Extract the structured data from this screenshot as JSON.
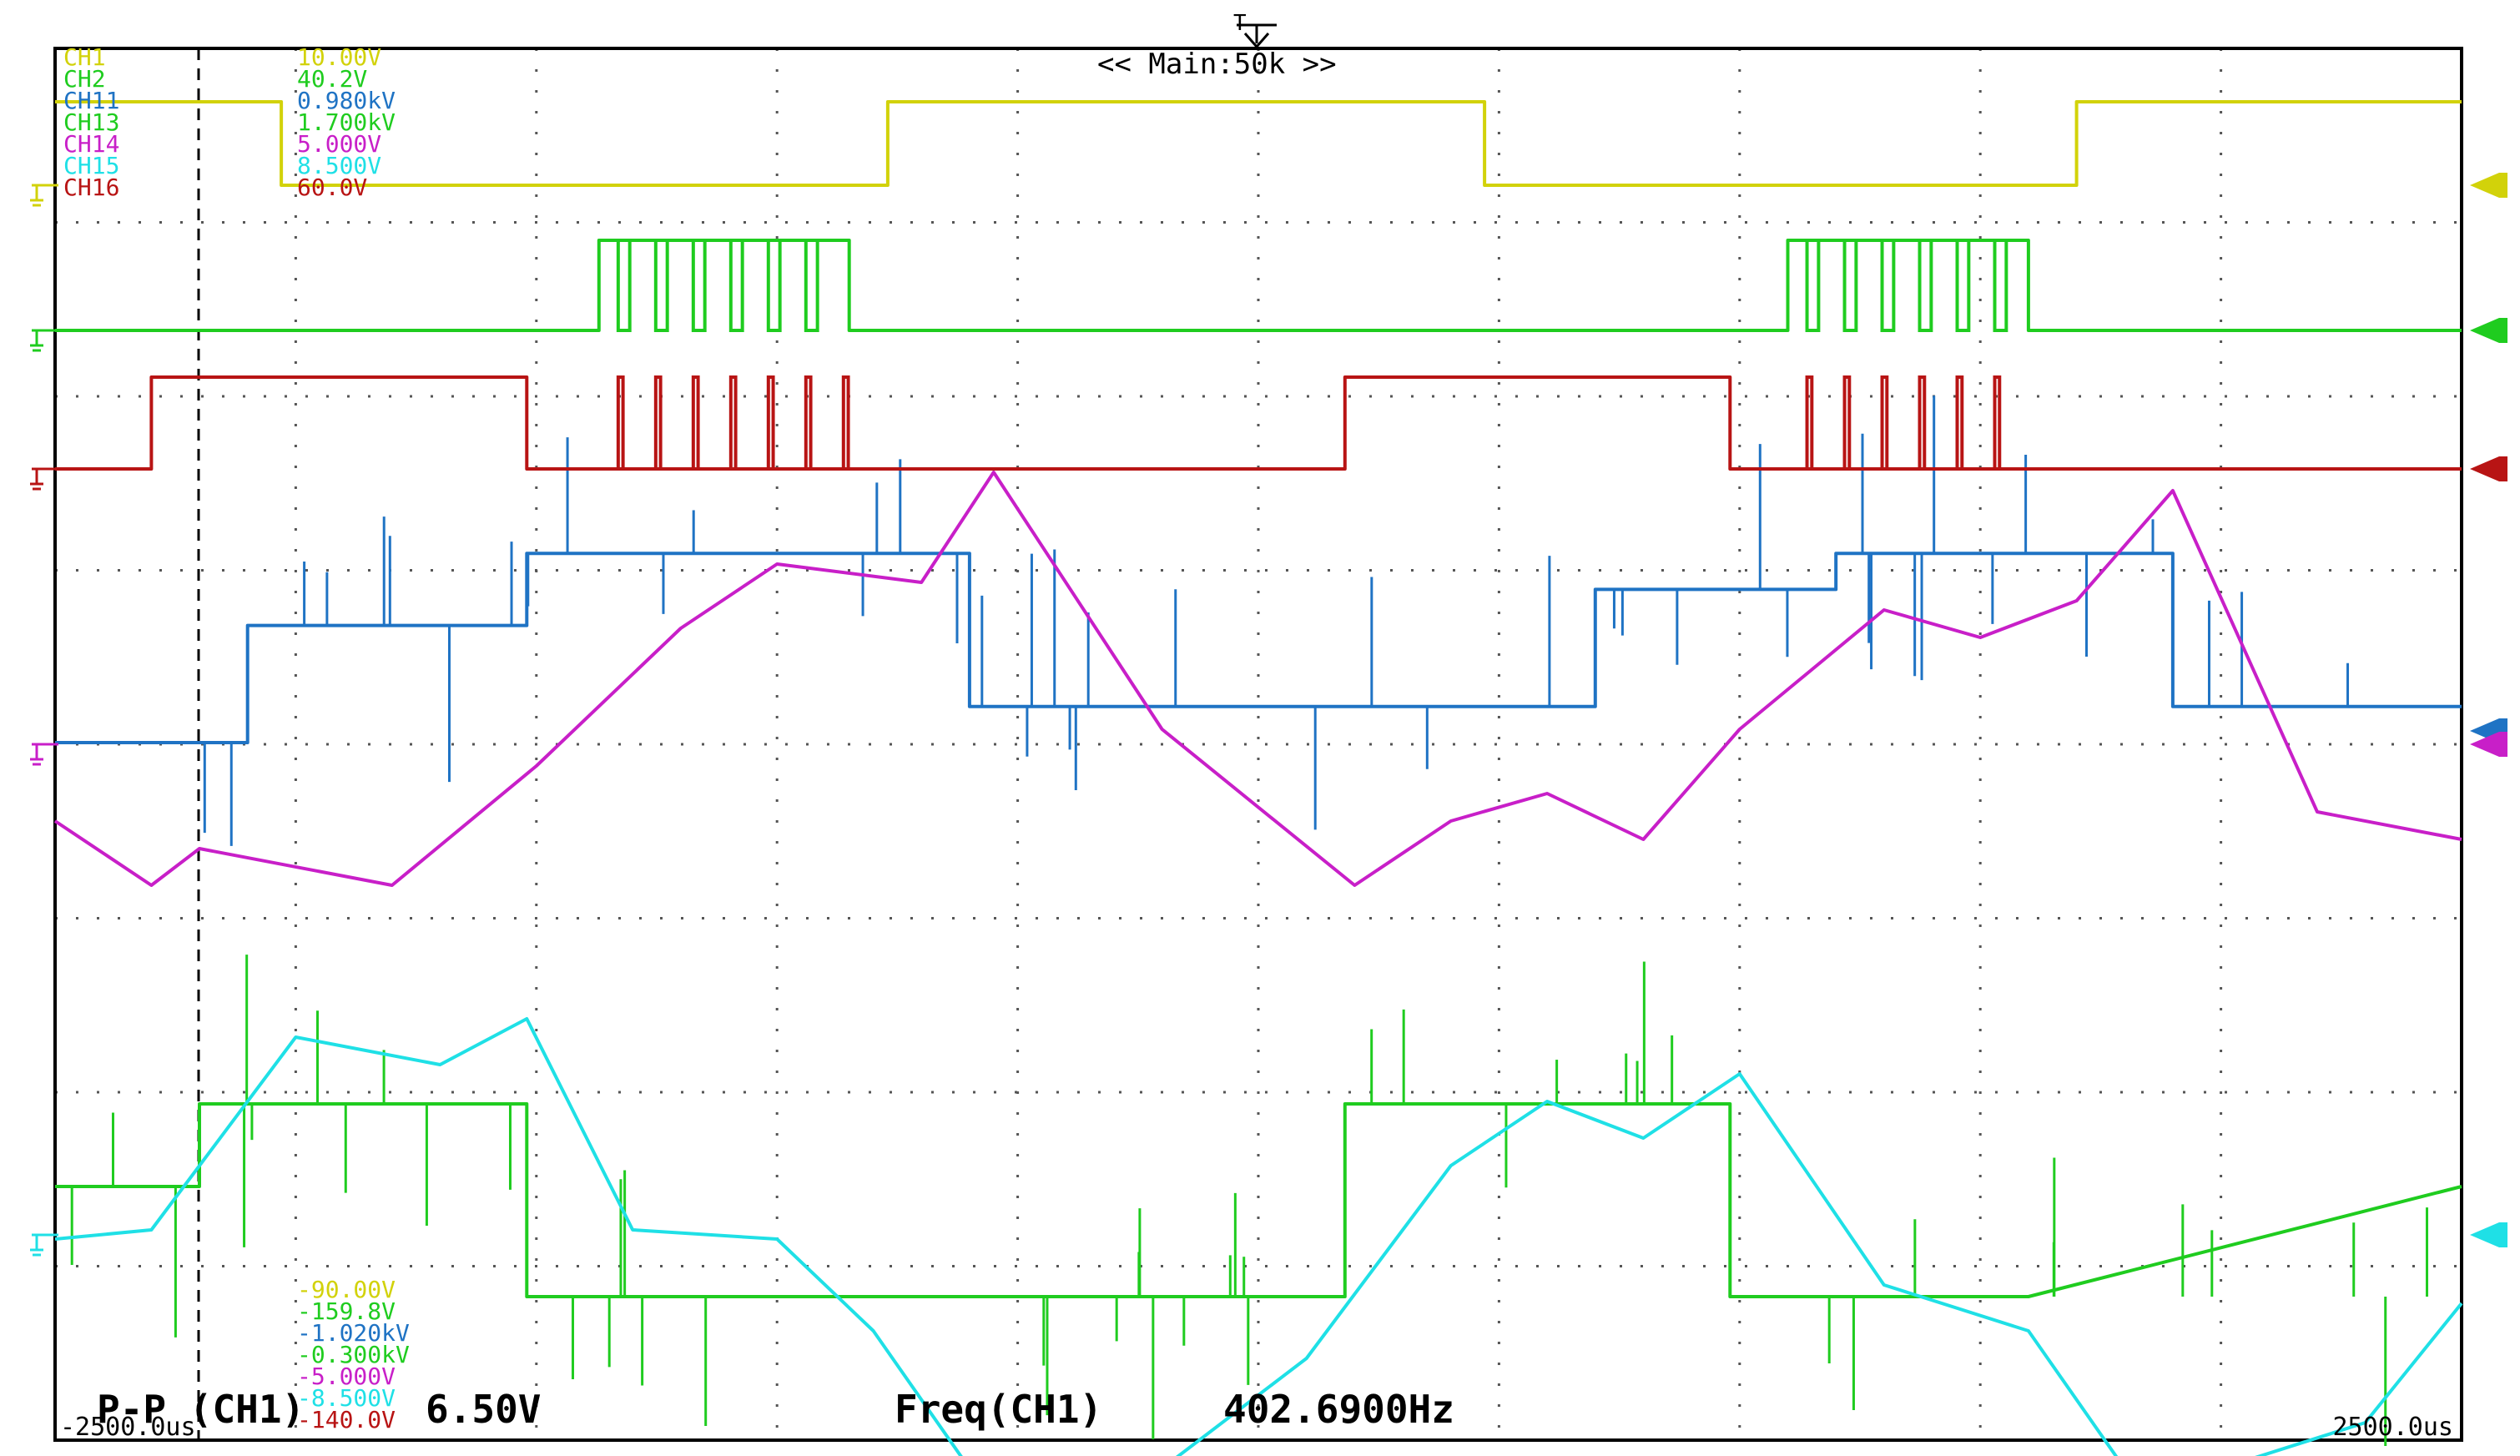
{
  "header": {
    "trigger_marker": "T",
    "zoom_label": "<< Main:50k >>"
  },
  "channel_legend_top": [
    {
      "name": "CH1",
      "scale": "10.00V",
      "color": "#d2d20a"
    },
    {
      "name": "CH2",
      "scale": "40.2V",
      "color": "#1fcc1f"
    },
    {
      "name": "CH11",
      "scale": "0.980kV",
      "color": "#1f73c4"
    },
    {
      "name": "CH13",
      "scale": "1.700kV",
      "color": "#1fcc1f"
    },
    {
      "name": "CH14",
      "scale": "5.000V",
      "color": "#c81fc8"
    },
    {
      "name": "CH15",
      "scale": "8.500V",
      "color": "#1fe0e6"
    },
    {
      "name": "CH16",
      "scale": "60.0V",
      "color": "#b81414"
    }
  ],
  "offset_legend_bottom": [
    {
      "value": "-90.00V",
      "color": "#d2d20a"
    },
    {
      "value": "-159.8V",
      "color": "#1fcc1f"
    },
    {
      "value": "-1.020kV",
      "color": "#1f73c4"
    },
    {
      "value": "-0.300kV",
      "color": "#1fcc1f"
    },
    {
      "value": "-5.000V",
      "color": "#c81fc8"
    },
    {
      "value": "-8.500V",
      "color": "#1fe0e6"
    },
    {
      "value": "-140.0V",
      "color": "#b81414"
    }
  ],
  "measurements": {
    "pp_label": "P-P (CH1)",
    "pp_value": "6.50V",
    "freq_label": "Freq(CH1)",
    "freq_value": "402.6900Hz"
  },
  "time_axis": {
    "left": "-2500.0us",
    "right": "2500.0us"
  },
  "chart_data": {
    "type": "line",
    "x_unit": "us",
    "xlim": [
      -2500,
      2500
    ],
    "grid": true,
    "series": [
      {
        "name": "CH1",
        "color": "#d2d20a",
        "x": [
          -2500,
          -2030,
          -2030,
          -770,
          -770,
          470,
          470,
          1700,
          1700,
          2500
        ],
        "y": [
          1,
          1,
          0,
          0,
          1,
          1,
          0,
          0,
          1,
          1
        ]
      },
      {
        "name": "CH2",
        "color": "#1fcc1f",
        "x": [
          -2500,
          -1370,
          -1370,
          -850,
          -850,
          1100,
          1100,
          1600,
          1600,
          2500
        ],
        "y": [
          0,
          0,
          1,
          1,
          0,
          0,
          1,
          1,
          0,
          0
        ]
      },
      {
        "name": "CH16",
        "color": "#b81414",
        "x": [
          -2500,
          -2300,
          -2300,
          -1520,
          -1520,
          180,
          180,
          980,
          980,
          2500
        ],
        "y": [
          0,
          0,
          1,
          1,
          0,
          0,
          1,
          1,
          0,
          0
        ]
      },
      {
        "name": "CH14",
        "color": "#c81fc8",
        "x": [
          -2500,
          -2300,
          -2200,
          -1800,
          -1500,
          -1200,
          -1000,
          -700,
          -550,
          -200,
          200,
          400,
          600,
          800,
          1000,
          1300,
          1500,
          1700,
          1900,
          2200,
          2500
        ],
        "y": [
          1.6,
          0.9,
          1.3,
          0.9,
          2.2,
          3.7,
          4.4,
          4.2,
          5.4,
          2.6,
          0.9,
          1.6,
          1.9,
          1.4,
          2.6,
          3.9,
          3.6,
          4.0,
          5.2,
          1.7,
          1.4
        ]
      },
      {
        "name": "CH11",
        "color": "#1f73c4",
        "x": [
          -2500,
          -2100,
          -2100,
          -1520,
          -1520,
          -600,
          -600,
          100,
          100,
          700,
          700,
          1200,
          1200,
          1900,
          1900,
          2500
        ],
        "y": [
          2.5,
          2.5,
          3.8,
          3.8,
          4.6,
          4.6,
          2.9,
          2.9,
          2.9,
          2.9,
          4.2,
          4.2,
          4.6,
          4.6,
          2.9,
          2.9
        ]
      },
      {
        "name": "CH13",
        "color": "#1fcc1f",
        "x": [
          -2500,
          -2200,
          -2200,
          -1520,
          -1520,
          -500,
          -500,
          180,
          180,
          980,
          980,
          1600,
          1600,
          2500
        ],
        "y": [
          1.8,
          1.8,
          2.7,
          2.7,
          0.6,
          0.6,
          0.6,
          0.6,
          2.7,
          2.7,
          0.6,
          0.6,
          0.6,
          1.8
        ]
      },
      {
        "name": "CH15",
        "color": "#1fe0e6",
        "x": [
          -2500,
          -2300,
          -2000,
          -1700,
          -1520,
          -1300,
          -1000,
          -800,
          -600,
          -200,
          100,
          400,
          600,
          800,
          1000,
          1300,
          1600,
          1800,
          2000,
          2300,
          2500
        ],
        "y": [
          1.5,
          1.6,
          3.7,
          3.4,
          3.9,
          1.6,
          1.5,
          0.5,
          -1.0,
          -1.0,
          0.2,
          2.3,
          3.0,
          2.6,
          3.3,
          1.0,
          0.5,
          -1.0,
          -1.0,
          -0.5,
          0.8
        ]
      }
    ]
  }
}
